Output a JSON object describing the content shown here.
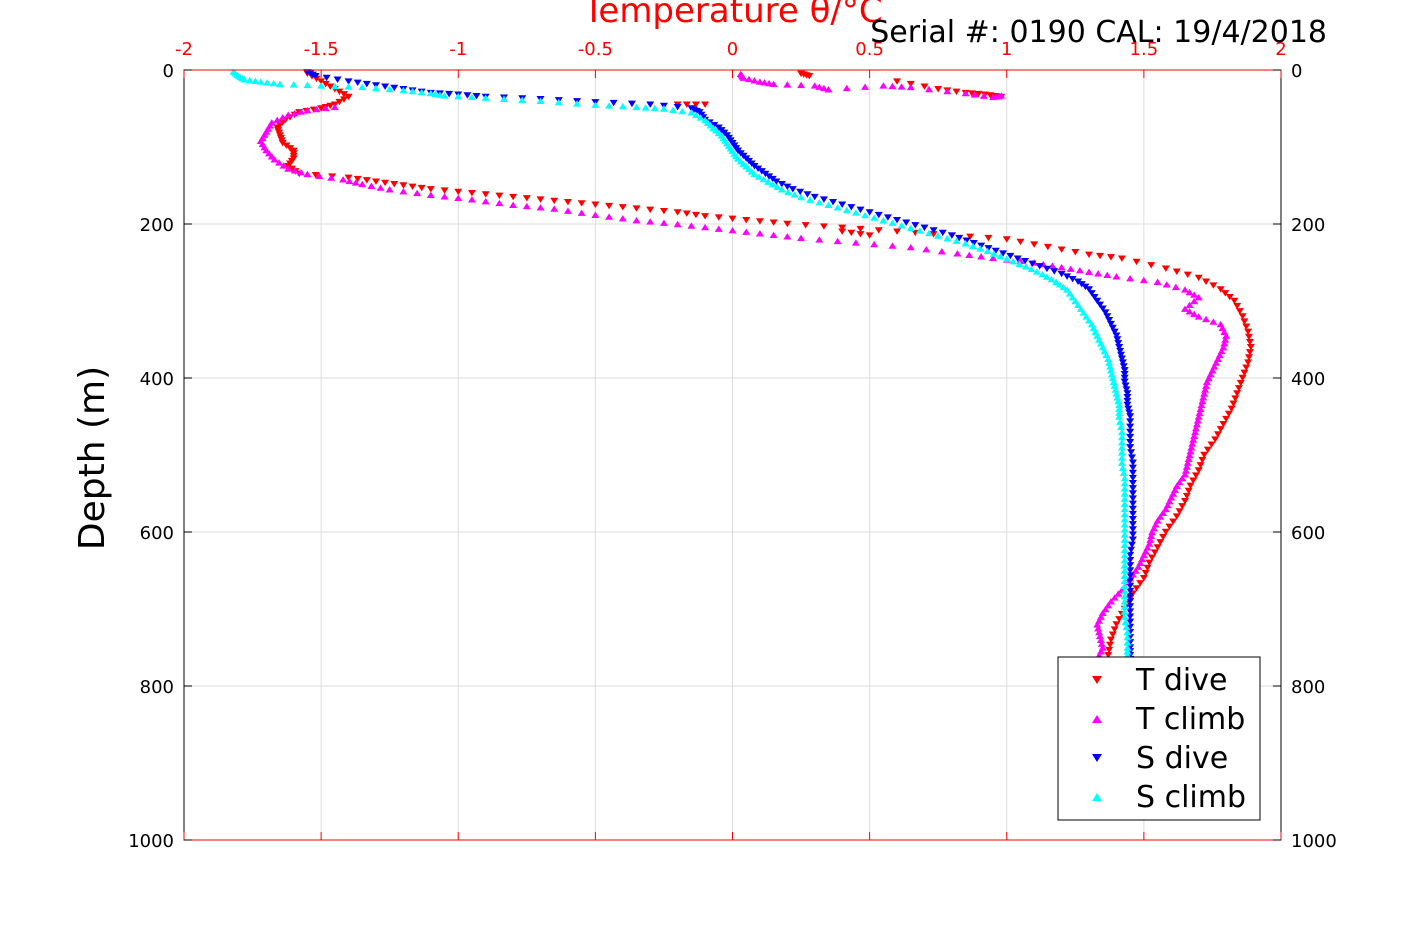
{
  "chart_data": {
    "type": "scatter",
    "title": "Temperature θ/°C",
    "annotation": "Serial #: 0190  CAL: 19/4/2018",
    "xlabel": "Temperature θ/°C",
    "ylabel": "Depth (m)",
    "xlim": [
      -2,
      2
    ],
    "ylim": [
      0,
      1000
    ],
    "y_reversed": true,
    "x_ticks": [
      -2,
      -1.5,
      -1,
      -0.5,
      0,
      0.5,
      1,
      1.5,
      2
    ],
    "x_tick_labels": [
      "-2",
      "-1.5",
      "-1",
      "-0.5",
      "0",
      "0.5",
      "1",
      "1.5",
      "2"
    ],
    "y_ticks": [
      0,
      200,
      400,
      600,
      800,
      1000
    ],
    "y_tick_labels": [
      "0",
      "200",
      "400",
      "600",
      "800",
      "1000"
    ],
    "grid": true,
    "legend_position": "bottom-right",
    "colors": {
      "axis_top": "#ff0000",
      "axis": "#000000",
      "grid": "#dddddd"
    },
    "series": [
      {
        "name": "T dive",
        "marker": "triangle-down",
        "color": "#ff0000",
        "points": [
          [
            -1.55,
            5
          ],
          [
            -1.5,
            15
          ],
          [
            -1.45,
            25
          ],
          [
            -1.4,
            35
          ],
          [
            -1.45,
            45
          ],
          [
            -1.5,
            50
          ],
          [
            -1.58,
            55
          ],
          [
            -1.63,
            65
          ],
          [
            -1.66,
            75
          ],
          [
            -1.65,
            85
          ],
          [
            -1.64,
            95
          ],
          [
            -1.6,
            105
          ],
          [
            -1.6,
            115
          ],
          [
            -1.62,
            125
          ],
          [
            -1.58,
            135
          ],
          [
            -1.4,
            140
          ],
          [
            -1.3,
            145
          ],
          [
            -1.2,
            150
          ],
          [
            -1.1,
            155
          ],
          [
            -0.95,
            160
          ],
          [
            -0.8,
            165
          ],
          [
            -0.65,
            170
          ],
          [
            -0.5,
            175
          ],
          [
            -0.35,
            180
          ],
          [
            -0.2,
            185
          ],
          [
            -0.1,
            190
          ],
          [
            0.05,
            195
          ],
          [
            0.2,
            200
          ],
          [
            0.4,
            205
          ],
          [
            0.6,
            210
          ],
          [
            0.8,
            215
          ],
          [
            1.0,
            220
          ],
          [
            1.15,
            230
          ],
          [
            1.3,
            240
          ],
          [
            1.42,
            245
          ],
          [
            1.58,
            258
          ],
          [
            1.7,
            270
          ],
          [
            1.78,
            285
          ],
          [
            1.83,
            300
          ],
          [
            1.86,
            320
          ],
          [
            1.88,
            340
          ],
          [
            1.89,
            360
          ],
          [
            1.88,
            380
          ],
          [
            1.86,
            400
          ],
          [
            1.84,
            420
          ],
          [
            1.82,
            440
          ],
          [
            1.79,
            460
          ],
          [
            1.76,
            480
          ],
          [
            1.72,
            500
          ],
          [
            1.7,
            520
          ],
          [
            1.67,
            540
          ],
          [
            1.65,
            560
          ],
          [
            1.62,
            580
          ],
          [
            1.58,
            600
          ],
          [
            1.55,
            620
          ],
          [
            1.52,
            640
          ],
          [
            1.5,
            660
          ],
          [
            1.46,
            680
          ],
          [
            1.43,
            700
          ],
          [
            1.4,
            720
          ],
          [
            1.38,
            740
          ],
          [
            1.37,
            760
          ],
          [
            0.25,
            5
          ],
          [
            0.28,
            8
          ],
          [
            0.6,
            15
          ],
          [
            0.75,
            25
          ],
          [
            0.85,
            30
          ],
          [
            0.92,
            32
          ],
          [
            0.98,
            35
          ],
          [
            -0.2,
            45
          ],
          [
            -0.1,
            45
          ],
          [
            0.4,
            210
          ],
          [
            0.5,
            215
          ]
        ]
      },
      {
        "name": "T climb",
        "marker": "triangle-up",
        "color": "#ff00ff",
        "points": [
          [
            0.03,
            5
          ],
          [
            0.04,
            10
          ],
          [
            0.1,
            15
          ],
          [
            0.15,
            18
          ],
          [
            0.3,
            20
          ],
          [
            0.35,
            25
          ],
          [
            0.55,
            20
          ],
          [
            0.65,
            22
          ],
          [
            0.85,
            30
          ],
          [
            0.95,
            35
          ],
          [
            0.98,
            33
          ],
          [
            -1.45,
            48
          ],
          [
            -1.55,
            52
          ],
          [
            -1.62,
            58
          ],
          [
            -1.68,
            68
          ],
          [
            -1.7,
            80
          ],
          [
            -1.72,
            92
          ],
          [
            -1.7,
            104
          ],
          [
            -1.67,
            116
          ],
          [
            -1.62,
            128
          ],
          [
            -1.55,
            135
          ],
          [
            -1.42,
            142
          ],
          [
            -1.35,
            148
          ],
          [
            -1.25,
            155
          ],
          [
            -1.1,
            162
          ],
          [
            -0.95,
            168
          ],
          [
            -0.8,
            175
          ],
          [
            -0.65,
            180
          ],
          [
            -0.5,
            188
          ],
          [
            -0.35,
            195
          ],
          [
            -0.2,
            200
          ],
          [
            -0.05,
            206
          ],
          [
            0.1,
            212
          ],
          [
            0.25,
            218
          ],
          [
            0.45,
            224
          ],
          [
            0.65,
            230
          ],
          [
            0.82,
            238
          ],
          [
            0.95,
            244
          ],
          [
            1.1,
            250
          ],
          [
            1.2,
            256
          ],
          [
            1.3,
            262
          ],
          [
            1.4,
            268
          ],
          [
            1.55,
            275
          ],
          [
            1.65,
            285
          ],
          [
            1.7,
            295
          ],
          [
            1.65,
            310
          ],
          [
            1.7,
            320
          ],
          [
            1.78,
            330
          ],
          [
            1.8,
            345
          ],
          [
            1.79,
            360
          ],
          [
            1.77,
            375
          ],
          [
            1.75,
            390
          ],
          [
            1.73,
            405
          ],
          [
            1.72,
            420
          ],
          [
            1.71,
            435
          ],
          [
            1.7,
            450
          ],
          [
            1.69,
            465
          ],
          [
            1.68,
            480
          ],
          [
            1.67,
            495
          ],
          [
            1.66,
            510
          ],
          [
            1.65,
            525
          ],
          [
            1.62,
            540
          ],
          [
            1.6,
            555
          ],
          [
            1.58,
            570
          ],
          [
            1.55,
            585
          ],
          [
            1.53,
            600
          ],
          [
            1.52,
            615
          ],
          [
            1.5,
            630
          ],
          [
            1.48,
            645
          ],
          [
            1.45,
            660
          ],
          [
            1.42,
            675
          ],
          [
            1.38,
            690
          ],
          [
            1.35,
            705
          ],
          [
            1.33,
            720
          ],
          [
            1.34,
            735
          ],
          [
            1.35,
            750
          ],
          [
            1.33,
            765
          ]
        ]
      },
      {
        "name": "S dive",
        "marker": "triangle-down",
        "color": "#0000ff",
        "points": [
          [
            -1.55,
            3
          ],
          [
            -1.52,
            8
          ],
          [
            -1.4,
            15
          ],
          [
            -1.3,
            20
          ],
          [
            -1.2,
            25
          ],
          [
            -1.1,
            30
          ],
          [
            -1.0,
            32
          ],
          [
            -0.9,
            35
          ],
          [
            -0.7,
            38
          ],
          [
            -0.5,
            42
          ],
          [
            -0.3,
            45
          ],
          [
            -0.15,
            50
          ],
          [
            -0.12,
            55
          ],
          [
            -0.1,
            65
          ],
          [
            -0.05,
            75
          ],
          [
            -0.02,
            85
          ],
          [
            0.0,
            95
          ],
          [
            0.02,
            105
          ],
          [
            0.05,
            115
          ],
          [
            0.08,
            125
          ],
          [
            0.12,
            135
          ],
          [
            0.16,
            145
          ],
          [
            0.22,
            155
          ],
          [
            0.3,
            165
          ],
          [
            0.4,
            175
          ],
          [
            0.5,
            185
          ],
          [
            0.6,
            195
          ],
          [
            0.7,
            205
          ],
          [
            0.8,
            215
          ],
          [
            0.88,
            225
          ],
          [
            0.96,
            235
          ],
          [
            1.04,
            245
          ],
          [
            1.12,
            255
          ],
          [
            1.2,
            265
          ],
          [
            1.26,
            275
          ],
          [
            1.3,
            285
          ],
          [
            1.33,
            300
          ],
          [
            1.36,
            315
          ],
          [
            1.38,
            330
          ],
          [
            1.4,
            345
          ],
          [
            1.41,
            360
          ],
          [
            1.42,
            375
          ],
          [
            1.43,
            390
          ],
          [
            1.43,
            405
          ],
          [
            1.44,
            420
          ],
          [
            1.44,
            435
          ],
          [
            1.45,
            450
          ],
          [
            1.45,
            470
          ],
          [
            1.45,
            490
          ],
          [
            1.46,
            510
          ],
          [
            1.46,
            530
          ],
          [
            1.46,
            550
          ],
          [
            1.46,
            570
          ],
          [
            1.46,
            590
          ],
          [
            1.46,
            610
          ],
          [
            1.45,
            630
          ],
          [
            1.45,
            650
          ],
          [
            1.45,
            670
          ],
          [
            1.45,
            690
          ],
          [
            1.45,
            710
          ],
          [
            1.45,
            730
          ],
          [
            1.45,
            750
          ],
          [
            1.45,
            765
          ]
        ]
      },
      {
        "name": "S climb",
        "marker": "triangle-up",
        "color": "#00ffff",
        "points": [
          [
            -1.82,
            2
          ],
          [
            -1.8,
            8
          ],
          [
            -1.78,
            12
          ],
          [
            -1.72,
            15
          ],
          [
            -1.65,
            18
          ],
          [
            -1.5,
            20
          ],
          [
            -1.35,
            22
          ],
          [
            -1.2,
            26
          ],
          [
            -1.1,
            30
          ],
          [
            -1.05,
            33
          ],
          [
            -0.9,
            36
          ],
          [
            -0.7,
            40
          ],
          [
            -0.5,
            45
          ],
          [
            -0.35,
            48
          ],
          [
            -0.25,
            50
          ],
          [
            -0.15,
            55
          ],
          [
            -0.1,
            65
          ],
          [
            -0.07,
            75
          ],
          [
            -0.04,
            85
          ],
          [
            -0.02,
            95
          ],
          [
            0.0,
            105
          ],
          [
            0.02,
            115
          ],
          [
            0.05,
            125
          ],
          [
            0.08,
            135
          ],
          [
            0.13,
            145
          ],
          [
            0.18,
            155
          ],
          [
            0.25,
            165
          ],
          [
            0.35,
            175
          ],
          [
            0.45,
            185
          ],
          [
            0.55,
            195
          ],
          [
            0.65,
            205
          ],
          [
            0.75,
            215
          ],
          [
            0.85,
            225
          ],
          [
            0.93,
            235
          ],
          [
            1.0,
            245
          ],
          [
            1.07,
            255
          ],
          [
            1.13,
            265
          ],
          [
            1.18,
            275
          ],
          [
            1.22,
            285
          ],
          [
            1.25,
            300
          ],
          [
            1.28,
            315
          ],
          [
            1.31,
            330
          ],
          [
            1.33,
            345
          ],
          [
            1.35,
            360
          ],
          [
            1.37,
            375
          ],
          [
            1.38,
            390
          ],
          [
            1.39,
            405
          ],
          [
            1.4,
            420
          ],
          [
            1.41,
            435
          ],
          [
            1.41,
            450
          ],
          [
            1.42,
            470
          ],
          [
            1.42,
            490
          ],
          [
            1.42,
            510
          ],
          [
            1.43,
            530
          ],
          [
            1.43,
            550
          ],
          [
            1.43,
            570
          ],
          [
            1.43,
            590
          ],
          [
            1.43,
            610
          ],
          [
            1.43,
            630
          ],
          [
            1.43,
            650
          ],
          [
            1.43,
            670
          ],
          [
            1.43,
            690
          ],
          [
            1.43,
            710
          ],
          [
            1.44,
            730
          ],
          [
            1.44,
            750
          ],
          [
            1.44,
            765
          ]
        ]
      }
    ]
  }
}
